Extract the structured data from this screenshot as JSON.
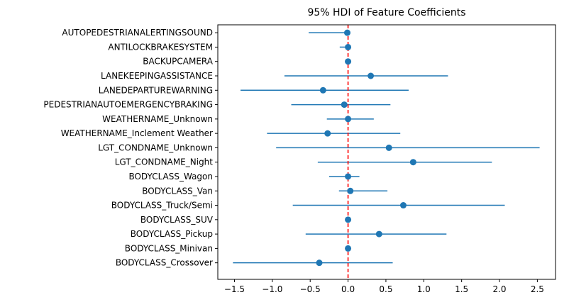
{
  "chart_data": {
    "type": "scatter",
    "title": "95% HDI of Feature Coefficients",
    "xlabel": "",
    "ylabel": "",
    "xlim": [
      -1.72,
      2.74
    ],
    "xticks": [
      -1.5,
      -1.0,
      -0.5,
      0.0,
      0.5,
      1.0,
      1.5,
      2.0,
      2.5
    ],
    "xtick_labels": [
      "−1.5",
      "−1.0",
      "−0.5",
      "0.0",
      "0.5",
      "1.0",
      "1.5",
      "2.0",
      "2.5"
    ],
    "grid": false,
    "reference_line": {
      "x": 0,
      "style": "dashed",
      "color": "#ff0000"
    },
    "point_color": "#1f77b4",
    "categories": [
      "AUTOPEDESTRIANALERTINGSOUND",
      "ANTILOCKBRAKESYSTEM",
      "BACKUPCAMERA",
      "LANEKEEPINGASSISTANCE",
      "LANEDEPARTUREWARNING",
      "PEDESTRIANAUTOEMERGENCYBRAKING",
      "WEATHERNAME_Unknown",
      "WEATHERNAME_Inclement Weather",
      "LGT_CONDNAME_Unknown",
      "LGT_CONDNAME_Night",
      "BODYCLASS_Wagon",
      "BODYCLASS_Van",
      "BODYCLASS_Truck/Semi",
      "BODYCLASS_SUV",
      "BODYCLASS_Pickup",
      "BODYCLASS_Minivan",
      "BODYCLASS_Crossover"
    ],
    "values": [
      -0.01,
      0.0,
      0.0,
      0.3,
      -0.33,
      -0.05,
      0.0,
      -0.27,
      0.54,
      0.86,
      0.0,
      0.03,
      0.73,
      0.0,
      0.41,
      0.0,
      -0.38
    ],
    "lower": [
      -0.52,
      -0.11,
      -0.01,
      -0.84,
      -1.42,
      -0.75,
      -0.28,
      -1.07,
      -0.95,
      -0.4,
      -0.25,
      -0.12,
      -0.73,
      -0.01,
      -0.56,
      -0.01,
      -1.52
    ],
    "upper": [
      -0.01,
      0.02,
      0.01,
      1.32,
      0.8,
      0.56,
      0.34,
      0.69,
      2.53,
      1.9,
      0.15,
      0.52,
      2.07,
      0.01,
      1.3,
      0.01,
      0.59
    ]
  }
}
